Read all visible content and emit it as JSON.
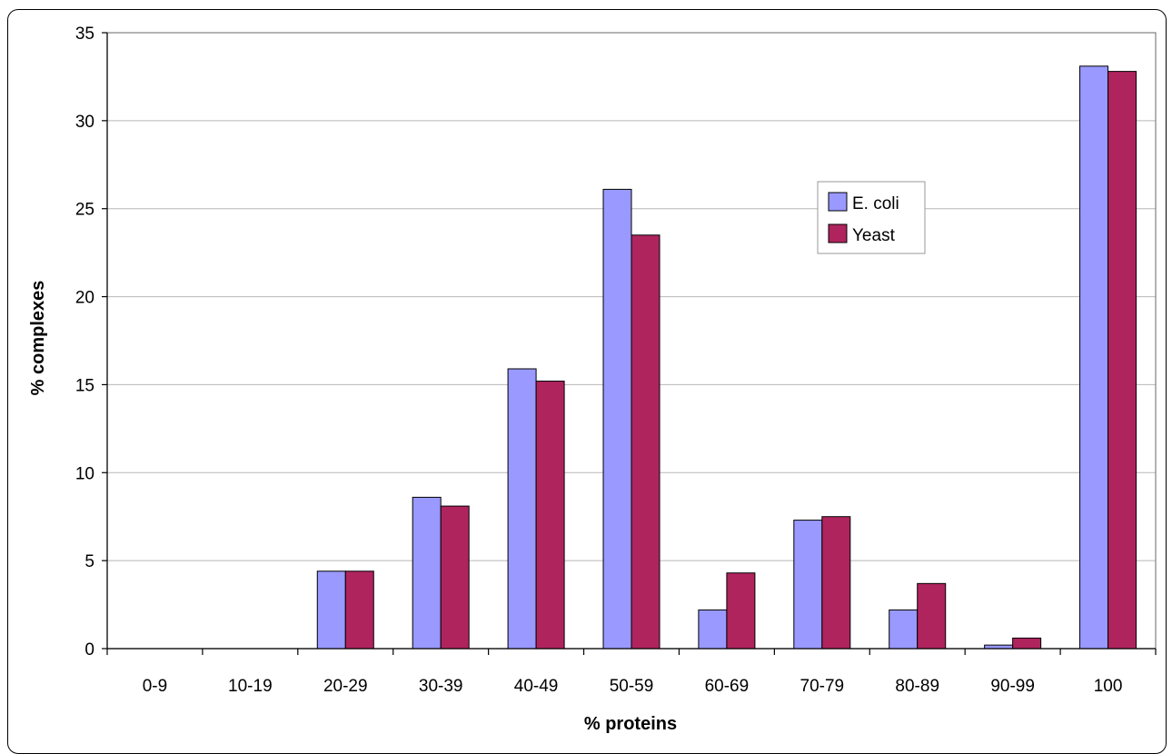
{
  "chart_data": {
    "type": "bar",
    "categories": [
      "0-9",
      "10-19",
      "20-29",
      "30-39",
      "40-49",
      "50-59",
      "60-69",
      "70-79",
      "80-89",
      "90-99",
      "100"
    ],
    "series": [
      {
        "name": "E. coli",
        "color": "#9999ff",
        "values": [
          0,
          0,
          4.4,
          8.6,
          15.9,
          26.1,
          2.2,
          7.3,
          2.2,
          0.2,
          33.1
        ]
      },
      {
        "name": "Yeast",
        "color": "#b0245e",
        "values": [
          0,
          0,
          4.4,
          8.1,
          15.2,
          23.5,
          4.3,
          7.5,
          3.7,
          0.6,
          32.8
        ]
      }
    ],
    "xlabel": "% proteins",
    "ylabel": "% complexes",
    "ylim": [
      0,
      35
    ],
    "yticks": [
      0,
      5,
      10,
      15,
      20,
      25,
      30,
      35
    ],
    "grid": true,
    "legend_position": "center-right"
  }
}
